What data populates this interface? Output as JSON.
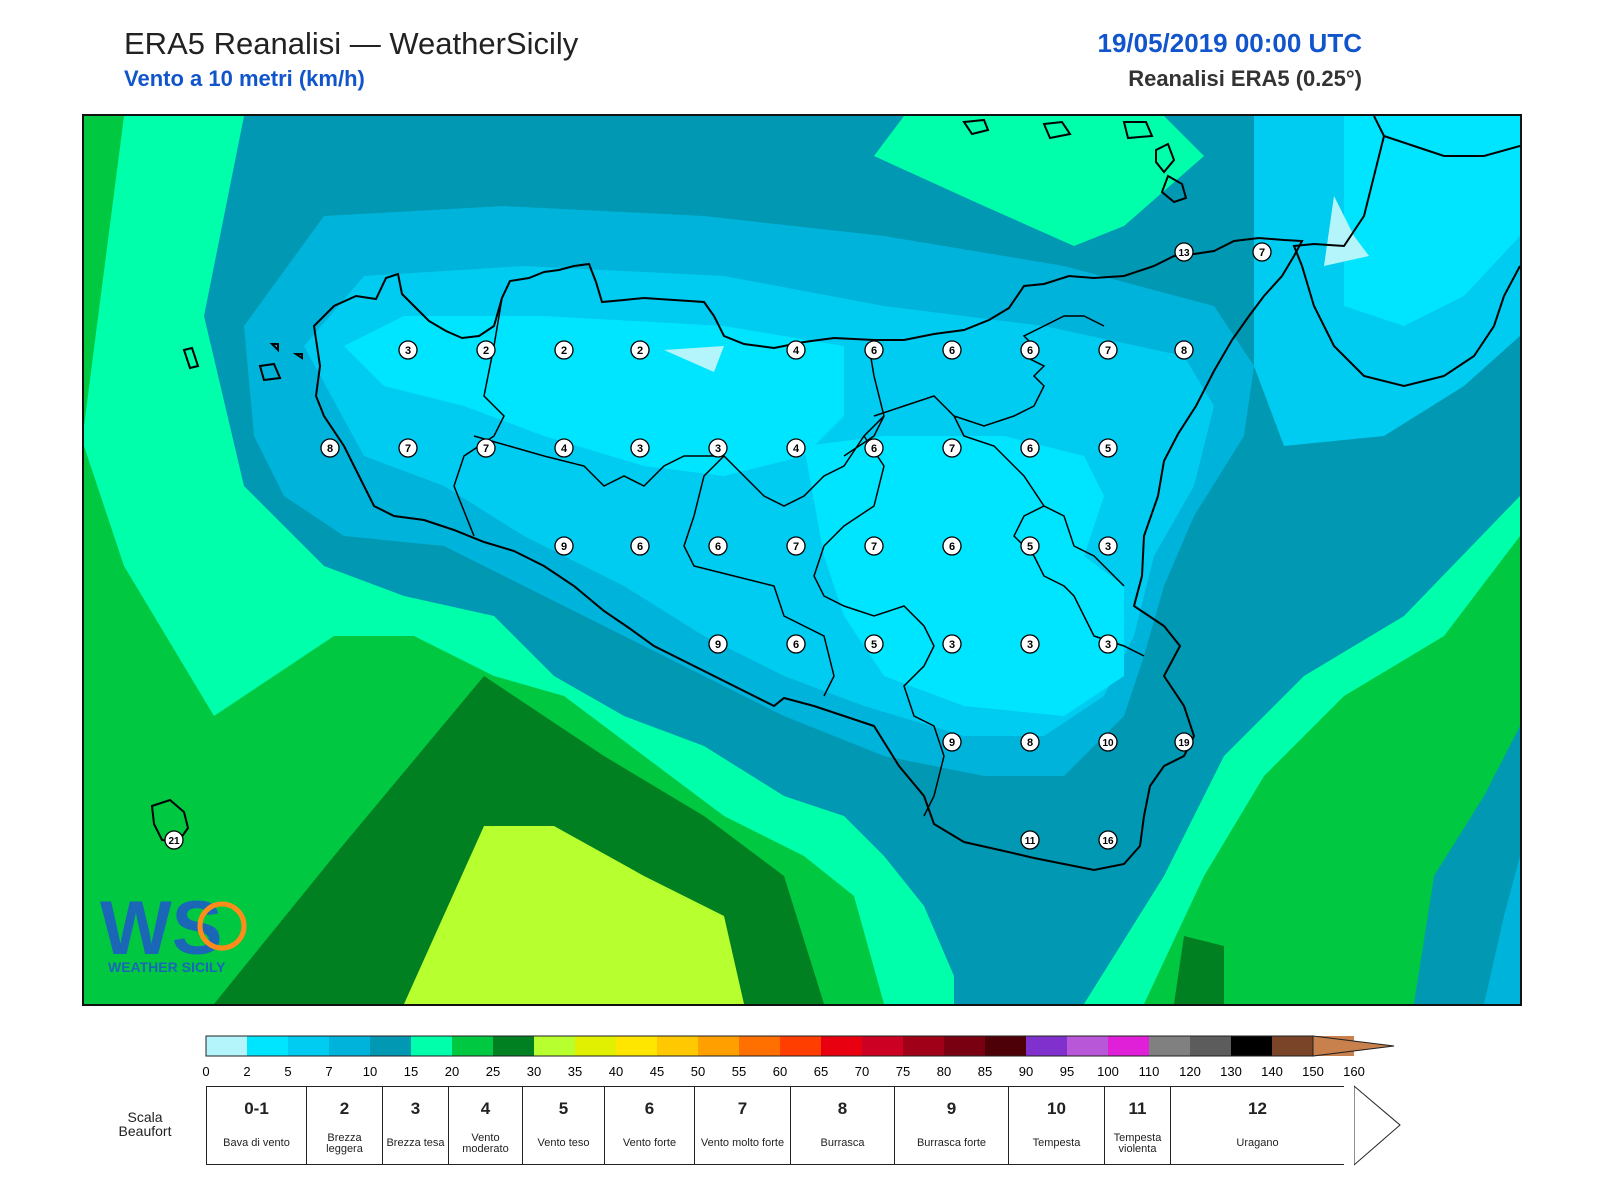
{
  "header": {
    "title": "ERA5 Reanalisi — WeatherSicily",
    "subtitle": "Vento a 10 metri (km/h)",
    "datetime": "19/05/2019 00:00 UTC",
    "model": "Reanalisi ERA5 (0.25°)"
  },
  "logo": {
    "letters": "WS",
    "text": "WEATHER SICILY"
  },
  "station_values": [
    {
      "id": "r1-1",
      "value": "3"
    },
    {
      "id": "r1-2",
      "value": "2"
    },
    {
      "id": "r1-3",
      "value": "2"
    },
    {
      "id": "r1-4",
      "value": "2"
    },
    {
      "id": "r1-5",
      "value": "4"
    },
    {
      "id": "r1-6",
      "value": "6"
    },
    {
      "id": "r1-7",
      "value": "6"
    },
    {
      "id": "r1-8",
      "value": "6"
    },
    {
      "id": "r1-9",
      "value": "7"
    },
    {
      "id": "r1-10",
      "value": "8"
    },
    {
      "id": "r2-1",
      "value": "8"
    },
    {
      "id": "r2-2",
      "value": "7"
    },
    {
      "id": "r2-3",
      "value": "7"
    },
    {
      "id": "r2-4",
      "value": "4"
    },
    {
      "id": "r2-5",
      "value": "3"
    },
    {
      "id": "r2-6",
      "value": "3"
    },
    {
      "id": "r2-7",
      "value": "4"
    },
    {
      "id": "r2-8",
      "value": "6"
    },
    {
      "id": "r2-9",
      "value": "7"
    },
    {
      "id": "r2-10",
      "value": "6"
    },
    {
      "id": "r2-11",
      "value": "5"
    },
    {
      "id": "r3-1",
      "value": "9"
    },
    {
      "id": "r3-2",
      "value": "6"
    },
    {
      "id": "r3-3",
      "value": "6"
    },
    {
      "id": "r3-4",
      "value": "7"
    },
    {
      "id": "r3-5",
      "value": "7"
    },
    {
      "id": "r3-6",
      "value": "6"
    },
    {
      "id": "r3-7",
      "value": "5"
    },
    {
      "id": "r3-8",
      "value": "3"
    },
    {
      "id": "r4-1",
      "value": "9"
    },
    {
      "id": "r4-2",
      "value": "6"
    },
    {
      "id": "r4-3",
      "value": "5"
    },
    {
      "id": "r4-4",
      "value": "3"
    },
    {
      "id": "r4-5",
      "value": "3"
    },
    {
      "id": "r4-6",
      "value": "3"
    },
    {
      "id": "r5-1",
      "value": "9"
    },
    {
      "id": "r5-2",
      "value": "8"
    },
    {
      "id": "r5-3",
      "value": "10"
    },
    {
      "id": "r5-4",
      "value": "19"
    },
    {
      "id": "r6-1",
      "value": "11"
    },
    {
      "id": "r6-2",
      "value": "16"
    },
    {
      "id": "messina-n",
      "value": "13"
    },
    {
      "id": "messina",
      "value": "7"
    },
    {
      "id": "pantelleria",
      "value": "21"
    }
  ],
  "colorbar": {
    "ticks": [
      "0",
      "2",
      "5",
      "7",
      "10",
      "15",
      "20",
      "25",
      "30",
      "35",
      "40",
      "45",
      "50",
      "55",
      "60",
      "65",
      "70",
      "75",
      "80",
      "85",
      "90",
      "95",
      "100",
      "110",
      "120",
      "130",
      "140",
      "150",
      "160"
    ],
    "colors": [
      "#b3f5fa",
      "#00e5ff",
      "#00cbf0",
      "#00b3da",
      "#0098b2",
      "#00ffaa",
      "#00c840",
      "#008020",
      "#b8ff30",
      "#e0f000",
      "#ffe600",
      "#ffc800",
      "#ffa000",
      "#ff7000",
      "#ff3e00",
      "#e80010",
      "#cc0022",
      "#a00018",
      "#780010",
      "#4e0008",
      "#8030cc",
      "#b858d8",
      "#e020d8",
      "#808080",
      "#5c5c5c",
      "#000000",
      "#7a4428",
      "#c8804c"
    ]
  },
  "beaufort": {
    "caption": "Scala Beaufort",
    "classes": [
      {
        "num": "0-1",
        "desc": "Bava di vento"
      },
      {
        "num": "2",
        "desc": "Brezza leggera"
      },
      {
        "num": "3",
        "desc": "Brezza tesa"
      },
      {
        "num": "4",
        "desc": "Vento moderato"
      },
      {
        "num": "5",
        "desc": "Vento teso"
      },
      {
        "num": "6",
        "desc": "Vento forte"
      },
      {
        "num": "7",
        "desc": "Vento molto forte"
      },
      {
        "num": "8",
        "desc": "Burrasca"
      },
      {
        "num": "9",
        "desc": "Burrasca forte"
      },
      {
        "num": "10",
        "desc": "Tempesta"
      },
      {
        "num": "11",
        "desc": "Tempesta violenta"
      },
      {
        "num": "12",
        "desc": "Uragano"
      }
    ]
  }
}
